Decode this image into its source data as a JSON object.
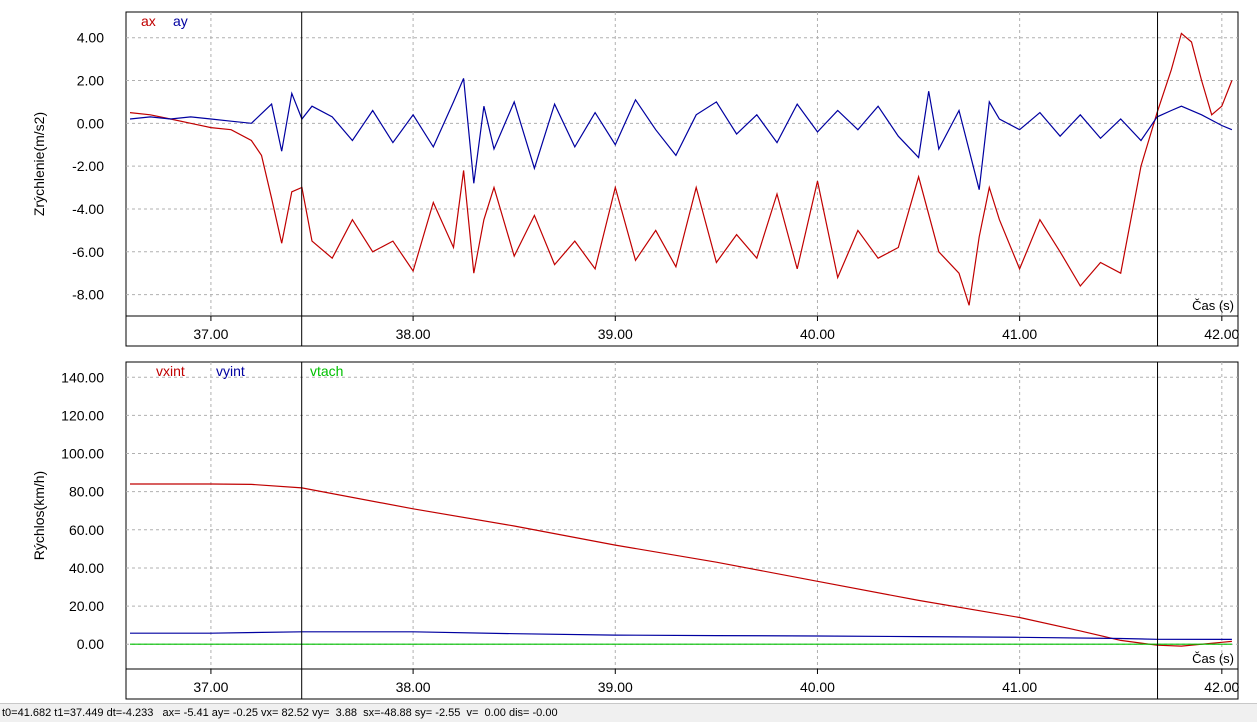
{
  "chart_data": [
    {
      "type": "line",
      "ylabel": "Zrýchlenie(m/s2)",
      "xlabel": "Čas (s)",
      "xlim": [
        36.58,
        42.08
      ],
      "ylim": [
        -9.0,
        5.2
      ],
      "xticks": [
        37.0,
        38.0,
        39.0,
        40.0,
        41.0,
        42.0
      ],
      "xtick_labels": [
        "37.00",
        "38.00",
        "39.00",
        "40.00",
        "41.00",
        "42.00"
      ],
      "yticks": [
        4.0,
        2.0,
        0.0,
        -2.0,
        -4.0,
        -6.0,
        -8.0
      ],
      "ytick_labels": [
        "4.00",
        "2.00",
        "0.00",
        "-2.00",
        "-4.00",
        "-6.00",
        "-8.00"
      ],
      "grid": true,
      "legend": "top-left",
      "cursors": [
        37.449,
        41.682
      ],
      "series": [
        {
          "name": "ax",
          "color": "#c00000",
          "x": [
            36.6,
            36.7,
            36.8,
            36.9,
            37.0,
            37.1,
            37.2,
            37.25,
            37.3,
            37.35,
            37.4,
            37.45,
            37.5,
            37.6,
            37.7,
            37.8,
            37.9,
            38.0,
            38.1,
            38.2,
            38.25,
            38.3,
            38.35,
            38.4,
            38.5,
            38.6,
            38.7,
            38.8,
            38.9,
            39.0,
            39.1,
            39.2,
            39.3,
            39.4,
            39.5,
            39.6,
            39.7,
            39.8,
            39.9,
            40.0,
            40.1,
            40.2,
            40.3,
            40.4,
            40.5,
            40.6,
            40.7,
            40.75,
            40.8,
            40.85,
            40.9,
            41.0,
            41.1,
            41.2,
            41.3,
            41.4,
            41.5,
            41.6,
            41.68,
            41.75,
            41.8,
            41.85,
            41.9,
            41.95,
            42.0,
            42.05
          ],
          "y": [
            0.5,
            0.4,
            0.2,
            0.0,
            -0.2,
            -0.3,
            -0.8,
            -1.5,
            -3.5,
            -5.6,
            -3.2,
            -3.0,
            -5.5,
            -6.3,
            -4.5,
            -6.0,
            -5.5,
            -6.9,
            -3.7,
            -5.8,
            -2.2,
            -7.0,
            -4.5,
            -3.0,
            -6.2,
            -4.3,
            -6.6,
            -5.5,
            -6.8,
            -3.0,
            -6.4,
            -5.0,
            -6.7,
            -3.0,
            -6.5,
            -5.2,
            -6.3,
            -3.3,
            -6.8,
            -2.7,
            -7.2,
            -5.0,
            -6.3,
            -5.8,
            -2.5,
            -6.0,
            -7.0,
            -8.5,
            -5.3,
            -3.0,
            -4.5,
            -6.8,
            -4.5,
            -6.0,
            -7.6,
            -6.5,
            -7.0,
            -2.0,
            0.5,
            2.5,
            4.2,
            3.8,
            2.0,
            0.4,
            0.8,
            2.0
          ]
        },
        {
          "name": "ay",
          "color": "#0000a0",
          "x": [
            36.6,
            36.7,
            36.8,
            36.9,
            37.0,
            37.1,
            37.2,
            37.3,
            37.35,
            37.4,
            37.45,
            37.5,
            37.6,
            37.7,
            37.8,
            37.9,
            38.0,
            38.1,
            38.2,
            38.25,
            38.3,
            38.35,
            38.4,
            38.5,
            38.6,
            38.7,
            38.8,
            38.9,
            39.0,
            39.1,
            39.2,
            39.3,
            39.4,
            39.5,
            39.6,
            39.7,
            39.8,
            39.9,
            40.0,
            40.1,
            40.2,
            40.3,
            40.4,
            40.5,
            40.55,
            40.6,
            40.7,
            40.8,
            40.85,
            40.9,
            41.0,
            41.1,
            41.2,
            41.3,
            41.4,
            41.5,
            41.6,
            41.68,
            41.75,
            41.8,
            41.9,
            42.0,
            42.05
          ],
          "y": [
            0.2,
            0.3,
            0.2,
            0.3,
            0.2,
            0.1,
            0.0,
            0.9,
            -1.3,
            1.4,
            0.2,
            0.8,
            0.3,
            -0.8,
            0.6,
            -0.9,
            0.4,
            -1.1,
            1.0,
            2.1,
            -2.8,
            0.8,
            -1.2,
            1.0,
            -2.1,
            0.9,
            -1.1,
            0.5,
            -1.0,
            1.1,
            -0.3,
            -1.5,
            0.4,
            1.0,
            -0.5,
            0.4,
            -0.9,
            0.9,
            -0.4,
            0.6,
            -0.3,
            0.8,
            -0.6,
            -1.6,
            1.5,
            -1.2,
            0.6,
            -3.1,
            1.0,
            0.2,
            -0.3,
            0.5,
            -0.6,
            0.4,
            -0.7,
            0.2,
            -0.8,
            0.3,
            0.6,
            0.8,
            0.4,
            -0.1,
            -0.3
          ]
        }
      ]
    },
    {
      "type": "line",
      "ylabel": "Rýchlos(km/h)",
      "xlabel": "Čas (s)",
      "xlim": [
        36.58,
        42.08
      ],
      "ylim": [
        -13.0,
        148.0
      ],
      "xticks": [
        37.0,
        38.0,
        39.0,
        40.0,
        41.0,
        42.0
      ],
      "xtick_labels": [
        "37.00",
        "38.00",
        "39.00",
        "40.00",
        "41.00",
        "42.00"
      ],
      "yticks": [
        140.0,
        120.0,
        100.0,
        80.0,
        60.0,
        40.0,
        20.0,
        0.0
      ],
      "ytick_labels": [
        "140.00",
        "120.00",
        "100.00",
        "80.00",
        "60.00",
        "40.00",
        "20.00",
        "0.00"
      ],
      "grid": true,
      "legend": "top-left",
      "cursors": [
        37.449,
        41.682
      ],
      "series": [
        {
          "name": "vxint",
          "color": "#c00000",
          "x": [
            36.6,
            37.0,
            37.2,
            37.45,
            38.0,
            38.5,
            39.0,
            39.5,
            40.0,
            40.5,
            41.0,
            41.3,
            41.5,
            41.68,
            41.8,
            42.0,
            42.05
          ],
          "y": [
            84.0,
            84.0,
            83.8,
            82.0,
            71.0,
            62.0,
            52.0,
            43.0,
            33.0,
            23.0,
            14.0,
            7.0,
            2.0,
            -0.5,
            -1.0,
            1.0,
            1.5
          ]
        },
        {
          "name": "vyint",
          "color": "#0000a0",
          "x": [
            36.6,
            37.0,
            37.45,
            38.0,
            38.5,
            39.0,
            39.5,
            40.0,
            40.5,
            41.0,
            41.5,
            41.68,
            42.05
          ],
          "y": [
            5.8,
            5.8,
            6.5,
            6.5,
            5.5,
            4.8,
            4.5,
            4.3,
            4.0,
            3.6,
            3.0,
            2.6,
            2.5
          ]
        },
        {
          "name": "vtach",
          "color": "#00c000",
          "x": [
            36.6,
            42.05
          ],
          "y": [
            0.0,
            0.0
          ]
        }
      ]
    }
  ],
  "status": {
    "text": "t0=41.682 t1=37.449 dt=-4.233   ax= -5.41 ay= -0.25 vx= 82.52 vy=  3.88  sx=-48.88 sy= -2.55  v=  0.00 dis= -0.00"
  }
}
